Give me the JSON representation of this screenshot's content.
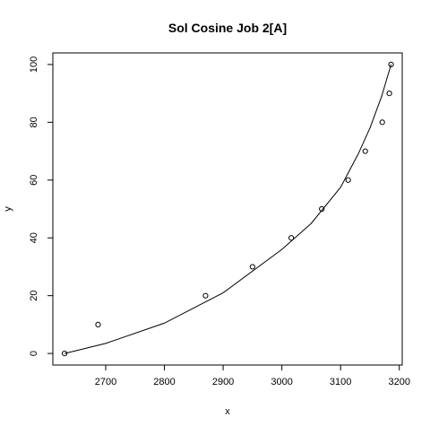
{
  "chart_data": {
    "type": "scatter",
    "title": "Sol Cosine Job 2[A]",
    "xlabel": "x",
    "ylabel": "y",
    "xlim": [
      2610,
      3205
    ],
    "ylim": [
      -4,
      104
    ],
    "xticks": [
      2700,
      2800,
      2900,
      3000,
      3100,
      3200
    ],
    "yticks": [
      0,
      20,
      40,
      60,
      80,
      100
    ],
    "xtick_labels": [
      "2700",
      "2800",
      "2900",
      "3000",
      "3100",
      "3200"
    ],
    "ytick_labels": [
      "0",
      "20",
      "40",
      "60",
      "80",
      "100"
    ],
    "grid": false,
    "legend": "none",
    "series": [
      {
        "type": "scatter",
        "marker": "open-circle",
        "x": [
          2630,
          2687,
          2870,
          2950,
          3016,
          3068,
          3113,
          3142,
          3171,
          3183,
          3186
        ],
        "y": [
          0,
          10,
          20,
          30,
          40,
          50,
          60,
          70,
          80,
          90,
          100
        ]
      },
      {
        "type": "line",
        "x": [
          2630,
          2700,
          2800,
          2900,
          3000,
          3050,
          3100,
          3130,
          3150,
          3170,
          3186
        ],
        "y": [
          0,
          3.5,
          10.5,
          21,
          36,
          45,
          57.5,
          69,
          78,
          89,
          100
        ]
      }
    ]
  }
}
